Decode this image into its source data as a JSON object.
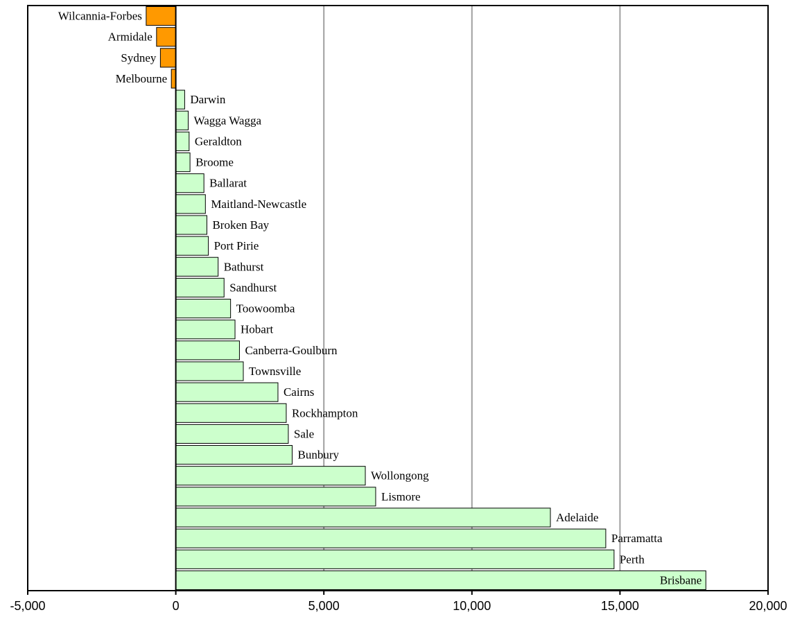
{
  "chart_data": {
    "type": "bar",
    "orientation": "horizontal",
    "title": "",
    "xlabel": "",
    "ylabel": "",
    "xlim": [
      -5000,
      20000
    ],
    "x_ticks": [
      -5000,
      0,
      5000,
      10000,
      15000,
      20000
    ],
    "x_tick_labels": [
      "-5,000",
      "0",
      "5,000",
      "10,000",
      "15,000",
      "20,000"
    ],
    "grid": "vertical lines at 5,000, 10,000, 15,000",
    "legend": "none",
    "colors": {
      "negative": "#ff9900",
      "positive": "#ccffcc",
      "border": "#000000",
      "grid": "#a0a0a0"
    },
    "categories": [
      "Wilcannia-Forbes",
      "Armidale",
      "Sydney",
      "Melbourne",
      "Darwin",
      "Wagga Wagga",
      "Geraldton",
      "Broome",
      "Ballarat",
      "Maitland-Newcastle",
      "Broken Bay",
      "Port Pirie",
      "Bathurst",
      "Sandhurst",
      "Toowoomba",
      "Hobart",
      "Canberra-Goulburn",
      "Townsville",
      "Cairns",
      "Rockhampton",
      "Sale",
      "Bunbury",
      "Wollongong",
      "Lismore",
      "Adelaide",
      "Parramatta",
      "Perth",
      "Brisbane"
    ],
    "values": [
      -1000,
      -650,
      -520,
      -150,
      300,
      420,
      450,
      480,
      950,
      1000,
      1050,
      1100,
      1430,
      1630,
      1850,
      2000,
      2150,
      2280,
      3450,
      3730,
      3800,
      3930,
      6400,
      6750,
      12650,
      14520,
      14800,
      17900
    ]
  }
}
